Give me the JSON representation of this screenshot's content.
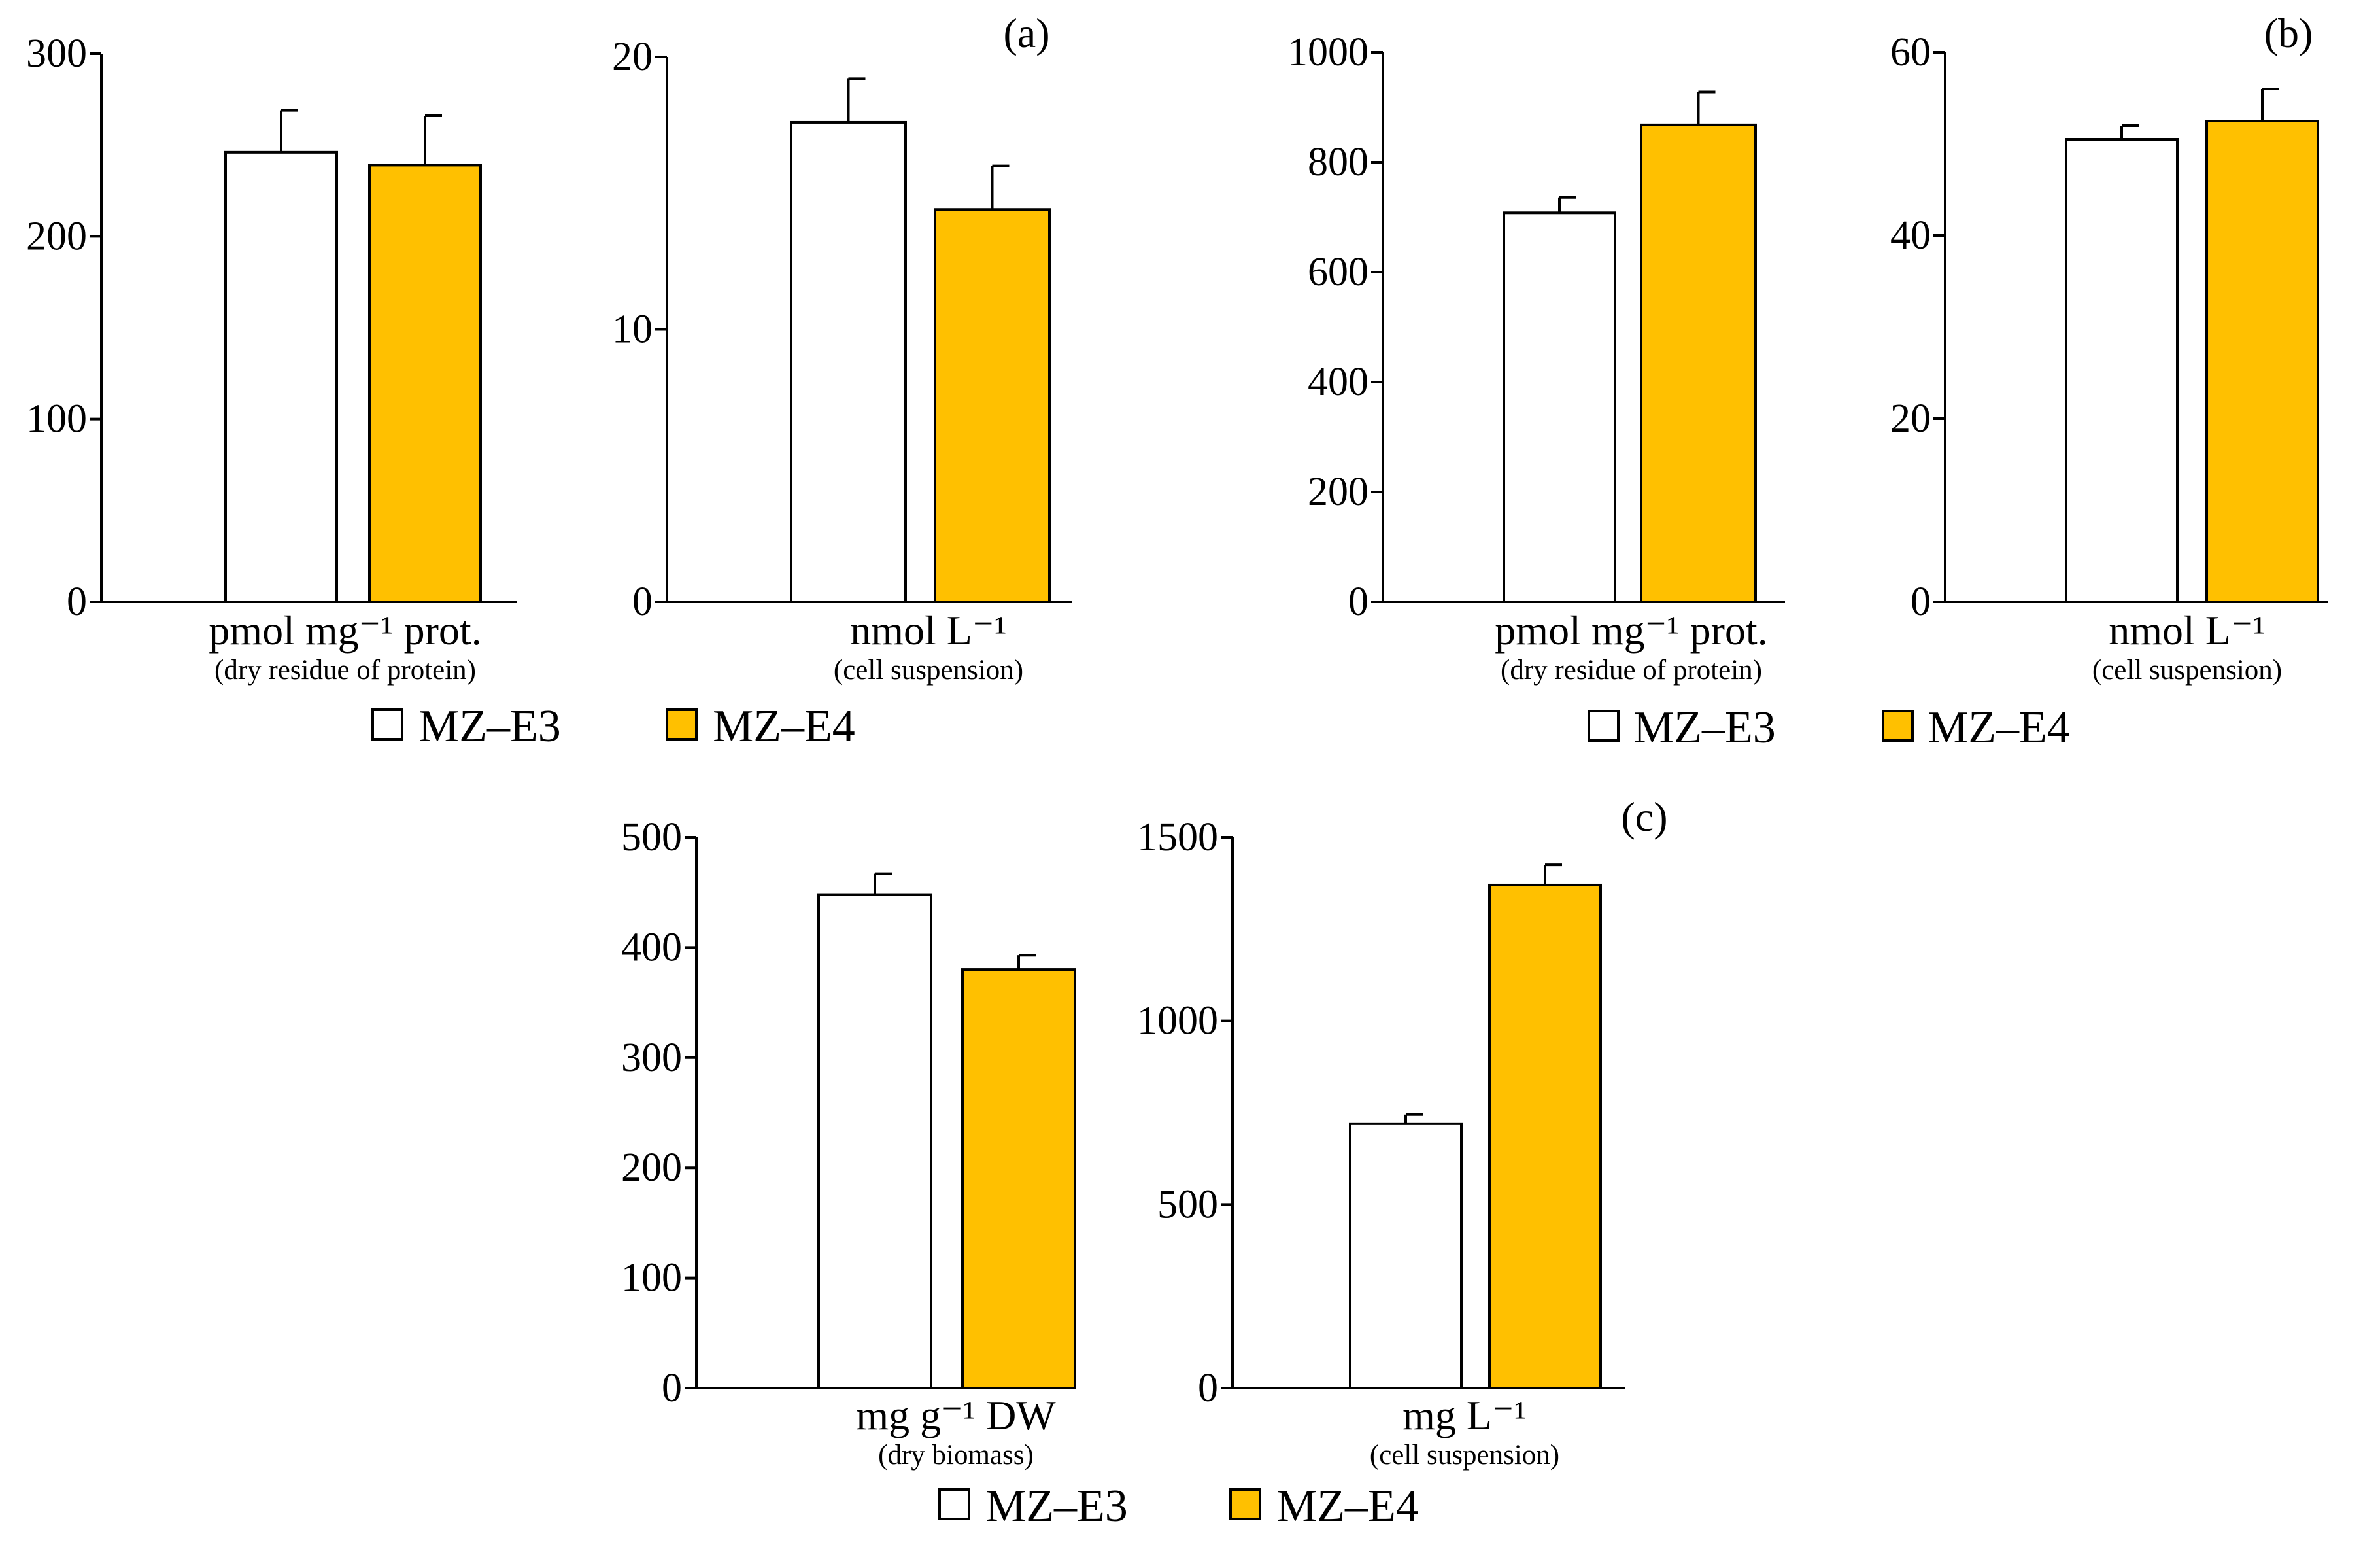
{
  "colors": {
    "e3": "#ffffff",
    "e4": "#ffc000",
    "axis": "#000000"
  },
  "legend": {
    "e3": "MZ–E3",
    "e4": "MZ–E4"
  },
  "panels": {
    "a": "(a)",
    "b": "(b)",
    "c": "(c)"
  },
  "chart_data": [
    {
      "type": "bar",
      "panel": "(a)",
      "categories": [
        "MZ–E3",
        "MZ–E4"
      ],
      "values": [
        246,
        239
      ],
      "errors": [
        23,
        27
      ],
      "xlabel": "pmol mg⁻¹ prot.",
      "xsublabel": "(dry residue of protein)",
      "ylim": [
        0,
        300
      ],
      "yticks": [
        "0",
        "100",
        "200",
        "300"
      ]
    },
    {
      "type": "bar",
      "panel": "(a)",
      "categories": [
        "MZ–E3",
        "MZ–E4"
      ],
      "values": [
        17.6,
        14.4
      ],
      "errors": [
        1.6,
        1.6
      ],
      "xlabel": "nmol L⁻¹",
      "xsublabel": "(cell suspension)",
      "ylim": [
        0,
        20
      ],
      "yticks": [
        "0",
        "10",
        "20"
      ]
    },
    {
      "type": "bar",
      "panel": "(b)",
      "categories": [
        "MZ–E3",
        "MZ–E4"
      ],
      "values": [
        708,
        868
      ],
      "errors": [
        28,
        60
      ],
      "xlabel": "pmol mg⁻¹ prot.",
      "xsublabel": "(dry residue of protein)",
      "ylim": [
        0,
        1000
      ],
      "yticks": [
        "0",
        "200",
        "400",
        "600",
        "800",
        "1000"
      ]
    },
    {
      "type": "bar",
      "panel": "(b)",
      "categories": [
        "MZ–E3",
        "MZ–E4"
      ],
      "values": [
        50.5,
        52.5
      ],
      "errors": [
        1.5,
        3.5
      ],
      "xlabel": "nmol L⁻¹",
      "xsublabel": "(cell suspension)",
      "ylim": [
        0,
        60
      ],
      "yticks": [
        "0",
        "20",
        "40",
        "60"
      ]
    },
    {
      "type": "bar",
      "panel": "(c)",
      "categories": [
        "MZ–E3",
        "MZ–E4"
      ],
      "values": [
        448,
        380
      ],
      "errors": [
        19,
        13
      ],
      "xlabel": "mg g⁻¹ DW",
      "xsublabel": "(dry biomass)",
      "ylim": [
        0,
        500
      ],
      "yticks": [
        "0",
        "100",
        "200",
        "300",
        "400",
        "500"
      ]
    },
    {
      "type": "bar",
      "panel": "(c)",
      "categories": [
        "MZ–E3",
        "MZ–E4"
      ],
      "values": [
        720,
        1370
      ],
      "errors": [
        25,
        55
      ],
      "xlabel": "mg L⁻¹",
      "xsublabel": "(cell suspension)",
      "ylim": [
        0,
        1500
      ],
      "yticks": [
        "0",
        "500",
        "1000",
        "1500"
      ]
    }
  ]
}
